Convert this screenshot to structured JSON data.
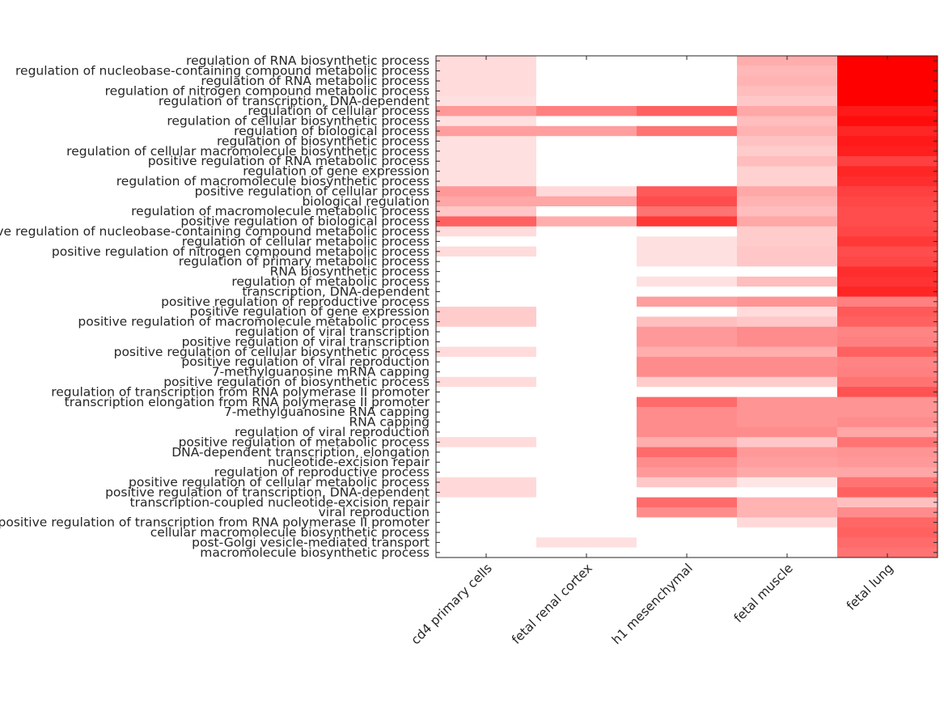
{
  "chart_data": {
    "type": "heatmap",
    "title": "",
    "xlabel": "",
    "ylabel": "",
    "colormap": {
      "low": "#ffffff",
      "high": "#ff0000"
    },
    "value_range": [
      0,
      1
    ],
    "columns": [
      "cd4 primary cells",
      "fetal renal cortex",
      "h1 mesenchymal",
      "fetal muscle",
      "fetal lung"
    ],
    "rows": [
      "regulation of RNA biosynthetic process",
      "regulation of nucleobase-containing compound metabolic process",
      "regulation of RNA metabolic process",
      "regulation of nitrogen compound metabolic process",
      "regulation of transcription, DNA-dependent",
      "regulation of cellular process",
      "regulation of cellular biosynthetic process",
      "regulation of biological process",
      "regulation of biosynthetic process",
      "regulation of cellular macromolecule biosynthetic process",
      "positive regulation of RNA metabolic process",
      "regulation of gene expression",
      "regulation of macromolecule biosynthetic process",
      "positive regulation of cellular process",
      "biological regulation",
      "regulation of macromolecule metabolic process",
      "positive regulation of biological process",
      "positive regulation of nucleobase-containing compound metabolic process",
      "regulation of cellular metabolic process",
      "positive regulation of nitrogen compound metabolic process",
      "regulation of primary metabolic process",
      "RNA biosynthetic process",
      "regulation of metabolic process",
      "transcription, DNA-dependent",
      "positive regulation of reproductive process",
      "positive regulation of gene expression",
      "positive regulation of macromolecule metabolic process",
      "regulation of viral transcription",
      "positive regulation of viral transcription",
      "positive regulation of cellular biosynthetic process",
      "positive regulation of viral reproduction",
      "7-methylguanosine mRNA capping",
      "positive regulation of biosynthetic process",
      "regulation of transcription from RNA polymerase II promoter",
      "transcription elongation from RNA polymerase II promoter",
      "7-methylguanosine RNA capping",
      "RNA capping",
      "regulation of viral reproduction",
      "positive regulation of metabolic process",
      "DNA-dependent transcription, elongation",
      "nucleotide-excision repair",
      "regulation of reproductive process",
      "positive regulation of cellular metabolic process",
      "positive regulation of transcription, DNA-dependent",
      "transcription-coupled nucleotide-excision repair",
      "viral reproduction",
      "positive regulation of transcription from RNA polymerase II promoter",
      "cellular macromolecule biosynthetic process",
      "post-Golgi vesicle-mediated transport",
      "macromolecule biosynthetic process"
    ],
    "values": [
      [
        0.14,
        0,
        0,
        0.32,
        1.0
      ],
      [
        0.14,
        0,
        0,
        0.28,
        1.0
      ],
      [
        0.14,
        0,
        0,
        0.3,
        1.0
      ],
      [
        0.14,
        0,
        0,
        0.26,
        1.0
      ],
      [
        0.12,
        0,
        0,
        0.22,
        1.0
      ],
      [
        0.4,
        0.5,
        0.62,
        0.34,
        0.9
      ],
      [
        0.12,
        0,
        0,
        0.26,
        0.95
      ],
      [
        0.38,
        0.38,
        0.55,
        0.3,
        0.85
      ],
      [
        0.12,
        0,
        0,
        0.24,
        0.9
      ],
      [
        0.12,
        0,
        0,
        0.2,
        0.88
      ],
      [
        0.12,
        0,
        0,
        0.26,
        0.75
      ],
      [
        0.12,
        0,
        0,
        0.18,
        0.85
      ],
      [
        0.12,
        0,
        0,
        0.18,
        0.82
      ],
      [
        0.4,
        0.15,
        0.65,
        0.34,
        0.75
      ],
      [
        0.35,
        0.35,
        0.7,
        0.3,
        0.72
      ],
      [
        0.22,
        0,
        0.55,
        0.26,
        0.7
      ],
      [
        0.62,
        0.32,
        0.78,
        0.34,
        0.7
      ],
      [
        0.14,
        0,
        0,
        0.2,
        0.72
      ],
      [
        0,
        0,
        0.12,
        0.2,
        0.78
      ],
      [
        0.14,
        0,
        0.12,
        0.22,
        0.7
      ],
      [
        0,
        0,
        0.12,
        0.22,
        0.72
      ],
      [
        0,
        0,
        0,
        0,
        0.82
      ],
      [
        0,
        0,
        0.12,
        0.26,
        0.8
      ],
      [
        0,
        0,
        0,
        0,
        0.85
      ],
      [
        0,
        0,
        0.38,
        0.42,
        0.5
      ],
      [
        0.2,
        0,
        0,
        0.14,
        0.65
      ],
      [
        0.2,
        0,
        0.25,
        0.22,
        0.62
      ],
      [
        0,
        0,
        0.4,
        0.45,
        0.48
      ],
      [
        0,
        0,
        0.4,
        0.45,
        0.5
      ],
      [
        0.14,
        0,
        0.32,
        0.32,
        0.62
      ],
      [
        0,
        0,
        0.45,
        0.45,
        0.48
      ],
      [
        0,
        0,
        0.45,
        0.45,
        0.5
      ],
      [
        0.14,
        0,
        0.2,
        0.2,
        0.55
      ],
      [
        0,
        0,
        0,
        0,
        0.68
      ],
      [
        0,
        0,
        0.58,
        0.42,
        0.42
      ],
      [
        0,
        0,
        0.45,
        0.42,
        0.42
      ],
      [
        0,
        0,
        0.45,
        0.42,
        0.45
      ],
      [
        0,
        0,
        0.45,
        0.45,
        0.35
      ],
      [
        0.14,
        0,
        0.32,
        0.22,
        0.55
      ],
      [
        0,
        0,
        0.58,
        0.4,
        0.42
      ],
      [
        0,
        0,
        0.45,
        0.38,
        0.4
      ],
      [
        0,
        0,
        0.4,
        0.34,
        0.35
      ],
      [
        0.15,
        0,
        0.22,
        0.1,
        0.55
      ],
      [
        0.15,
        0,
        0,
        0,
        0.62
      ],
      [
        0,
        0,
        0.58,
        0.3,
        0.25
      ],
      [
        0,
        0,
        0.45,
        0.3,
        0.45
      ],
      [
        0,
        0,
        0,
        0.15,
        0.6
      ],
      [
        0,
        0,
        0,
        0,
        0.62
      ],
      [
        0,
        0.12,
        0,
        0,
        0.58
      ],
      [
        0,
        0,
        0,
        0,
        0.55
      ]
    ]
  }
}
